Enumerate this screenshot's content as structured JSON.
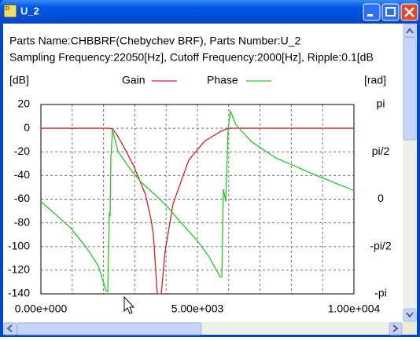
{
  "window": {
    "title": "U_2"
  },
  "header": {
    "line1": "Parts Name:CHBBRF(Chebychev BRF), Parts Number:U_2",
    "line2": "Sampling Frequency:22050[Hz], Cutoff Frequency:2000[Hz], Ripple:0.1[dB"
  },
  "chart_data": {
    "type": "line",
    "ylabel": "[dB]",
    "y2label": "[rad]",
    "xlim": [
      0,
      10000
    ],
    "xticks": [
      {
        "value": 0,
        "label": "0.00e+000"
      },
      {
        "value": 5000,
        "label": "5.00e+003"
      },
      {
        "value": 10000,
        "label": "1.00e+004"
      }
    ],
    "xgrid": [
      1000,
      2000,
      3000,
      4000,
      5000,
      6000,
      7000,
      8000,
      9000
    ],
    "ylim": [
      -140,
      20
    ],
    "yticks": [
      20,
      0,
      -20,
      -40,
      -60,
      -80,
      -100,
      -120,
      -140
    ],
    "y2lim": [
      -3.14159,
      3.14159
    ],
    "y2ticks": [
      {
        "value": 3.14159,
        "label": "pi"
      },
      {
        "value": 1.5708,
        "label": "pi/2"
      },
      0,
      {
        "value": -1.5708,
        "label": "-pi/2"
      },
      {
        "value": -3.14159,
        "label": "-pi"
      }
    ],
    "grid": true,
    "series": [
      {
        "name": "Gain",
        "color": "#d42020",
        "x": [
          0,
          2200,
          2300,
          2462,
          2714,
          2965,
          3216,
          3342,
          3518,
          3594,
          3719,
          3844,
          3970,
          4221,
          4724,
          5226,
          5729,
          5980,
          10000
        ],
        "values": [
          0,
          0,
          -1,
          -7,
          -19,
          -32,
          -48,
          -56,
          -77,
          -90,
          -140,
          -140,
          -104,
          -64,
          -27,
          -11,
          -3,
          0,
          0
        ]
      },
      {
        "name": "Phase",
        "color": "#22cc22",
        "axis": "y2",
        "x": [
          0,
          452,
          955,
          1457,
          1834,
          2085,
          2136,
          2186,
          2211,
          2236,
          2287,
          2462,
          2840,
          3216,
          3719,
          4096,
          4473,
          4976,
          5353,
          5729,
          5779,
          5829,
          5905,
          5980,
          6056,
          6232,
          6734,
          7487,
          8744,
          10000
        ],
        "values": [
          -0.08,
          -0.49,
          -0.96,
          -1.61,
          -2.21,
          -3.05,
          -3.07,
          -0.44,
          -0.57,
          1.38,
          2.29,
          1.59,
          1.02,
          0.55,
          0.08,
          -0.31,
          -0.78,
          -1.35,
          -1.88,
          -2.58,
          -2.58,
          0.34,
          -0.08,
          2.29,
          2.92,
          2.47,
          1.9,
          1.38,
          0.81,
          0.29
        ]
      }
    ]
  }
}
